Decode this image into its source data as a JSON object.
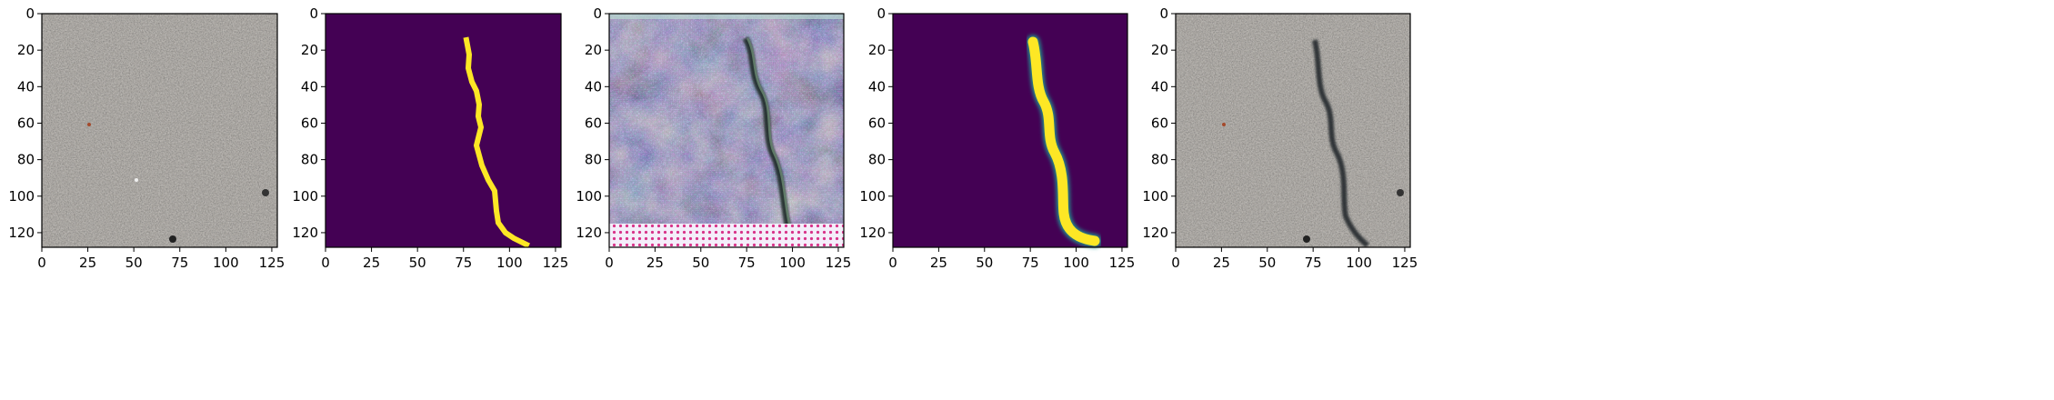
{
  "panels": [
    {
      "content": "concrete-texture-photo"
    },
    {
      "content": "binary-crack-mask",
      "background": "#440154",
      "foreground": "#fde725"
    },
    {
      "content": "generated-crack-image"
    },
    {
      "content": "smooth-crack-mask",
      "background": "#440154",
      "foreground": "#fde725"
    },
    {
      "content": "concrete-photo-with-crack"
    }
  ],
  "axes": {
    "x_ticks": [
      0,
      25,
      50,
      75,
      100,
      125
    ],
    "y_ticks": [
      0,
      20,
      40,
      60,
      80,
      100,
      120
    ],
    "x_range": [
      0,
      128
    ],
    "y_range": [
      0,
      128
    ]
  }
}
